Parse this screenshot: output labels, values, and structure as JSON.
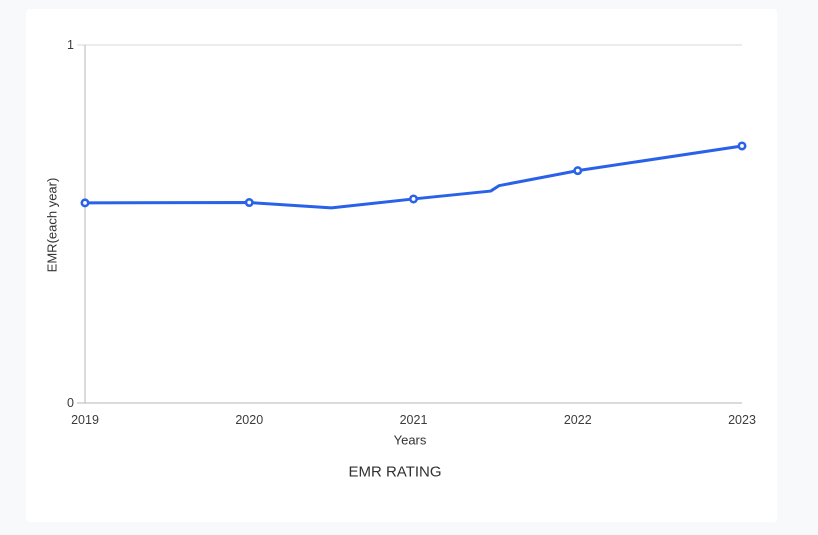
{
  "page": {
    "background": "#f8f9fb"
  },
  "card": {
    "background": "#ffffff"
  },
  "chart_data": {
    "type": "line",
    "title": "EMR RATING",
    "xlabel": "Years",
    "ylabel": "EMR(each year)",
    "categories": [
      "2019",
      "2020",
      "2021",
      "2022",
      "2023"
    ],
    "x": [
      2019,
      2020,
      2021,
      2022,
      2023
    ],
    "values": [
      0.56,
      0.56,
      0.57,
      0.65,
      0.72
    ],
    "detail_path": [
      [
        2019,
        0.559
      ],
      [
        2020,
        0.56
      ],
      [
        2020.5,
        0.545
      ],
      [
        2021,
        0.57
      ],
      [
        2021.47,
        0.592
      ],
      [
        2021.52,
        0.607
      ],
      [
        2022,
        0.649
      ],
      [
        2023,
        0.718
      ]
    ],
    "xlim": [
      2019,
      2023
    ],
    "ylim": [
      0,
      1
    ],
    "ytick_labels": [
      "0",
      "1"
    ],
    "grid": "top-gridline-only",
    "legend_position": "none",
    "line_color": "#2962e9",
    "marker_style": "open-circle",
    "marker_fill": "#ffffff",
    "grid_color": "#d9d9d9",
    "axis_color": "#b7b7b7"
  }
}
